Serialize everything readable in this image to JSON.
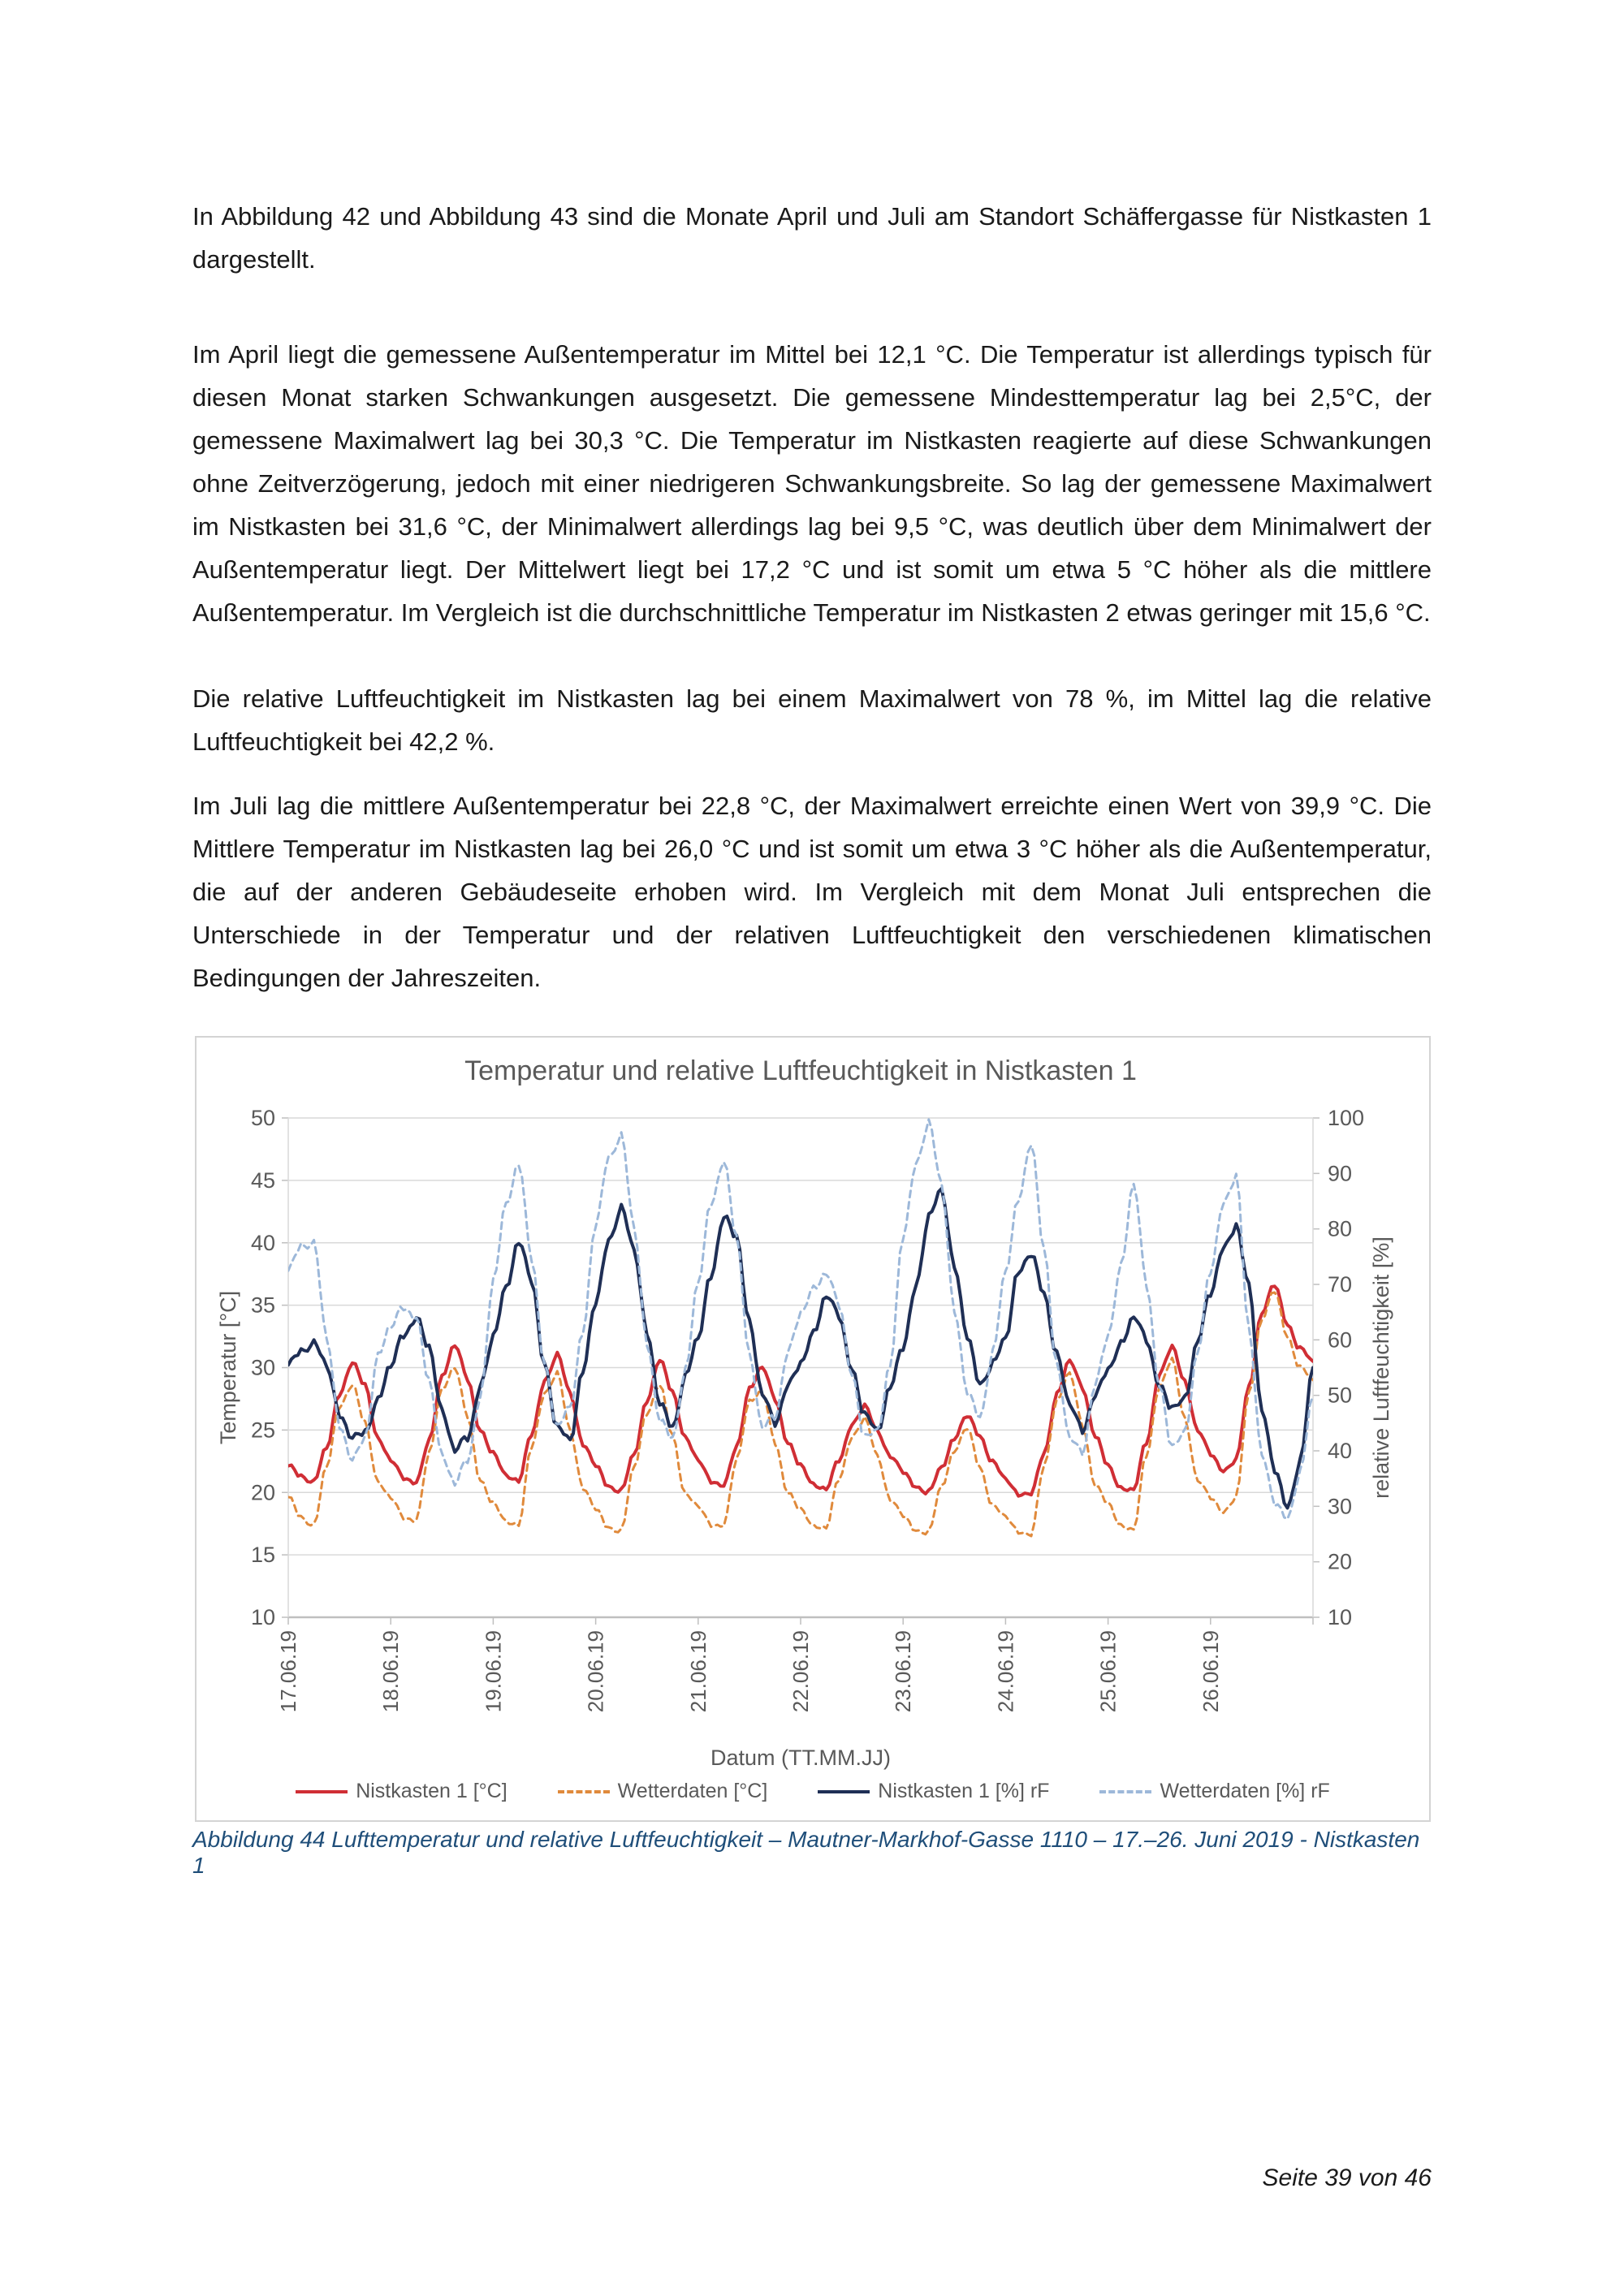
{
  "document": {
    "paragraphs": [
      "In Abbildung 42 und Abbildung 43 sind die Monate April und Juli am Standort Schäffergasse für Nistkasten 1 dargestellt.",
      "Im April liegt die gemessene Außentemperatur im Mittel bei 12,1 °C. Die Temperatur ist allerdings typisch für diesen Monat starken Schwankungen ausgesetzt. Die gemessene Mindesttemperatur lag bei 2,5°C, der gemessene Maximalwert lag bei 30,3 °C. Die Temperatur im Nistkasten reagierte auf diese Schwankungen ohne Zeitverzögerung, jedoch mit einer niedrigeren Schwankungsbreite. So lag der gemessene Maximalwert im Nistkasten bei 31,6 °C, der Minimalwert allerdings lag bei 9,5 °C, was deutlich über dem Minimalwert der Außentemperatur liegt. Der Mittelwert liegt bei 17,2 °C und ist somit um etwa 5 °C höher als die mittlere Außentemperatur. Im Vergleich ist die durchschnittliche Temperatur im Nistkasten 2 etwas geringer mit 15,6 °C.",
      "Die relative Luftfeuchtigkeit im Nistkasten lag bei einem Maximalwert von 78 %, im Mittel lag die relative Luftfeuchtigkeit bei 42,2 %.",
      "Im Juli lag die mittlere Außentemperatur bei 22,8 °C, der Maximalwert erreichte einen Wert von 39,9 °C. Die Mittlere Temperatur im Nistkasten lag bei 26,0 °C und ist somit um etwa 3 °C höher als die Außentemperatur, die auf der anderen Gebäudeseite erhoben wird. Im Vergleich mit dem Monat Juli entsprechen die Unterschiede in der Temperatur und der relativen Luftfeuchtigkeit den verschiedenen klimatischen Bedingungen der Jahreszeiten.",
      "klimatischen Bedingungen der Jahreszeiten."
    ],
    "caption": "Abbildung 44 Lufttemperatur und relative Luftfeuchtigkeit – Mautner-Markhof-Gasse 1110 – 17.–26. Juni 2019 - Nistkasten 1",
    "caption_color": "#1F4E79",
    "footer": "Seite 39 von 46"
  },
  "chart": {
    "title": "Temperatur und relative Luftfeuchtigkeit in Nistkasten 1",
    "x_axis_title": "Datum (TT.MM.JJ)"
  },
  "chart_data": {
    "type": "line",
    "title": "Temperatur und relative Luftfeuchtigkeit in Nistkasten 1",
    "xlabel": "Datum (TT.MM.JJ)",
    "time_step_hours": 3,
    "start": "17.06.19 00:00",
    "x_labels": [
      "17.06.19",
      "18.06.19",
      "19.06.19",
      "20.06.19",
      "21.06.19",
      "22.06.19",
      "23.06.19",
      "24.06.19",
      "25.06.19",
      "26.06.19"
    ],
    "grid": "horizontal",
    "legend_position": "bottom",
    "y_left": {
      "label": "Temperatur [°C]",
      "min": 10,
      "max": 50,
      "tick_step": 5,
      "ticks": [
        50,
        45,
        40,
        35,
        30,
        25,
        20,
        15,
        10
      ]
    },
    "y_right": {
      "label": "relative Luftfeuchtigkeit [%]",
      "min": 10,
      "max": 100,
      "tick_step": 10,
      "ticks": [
        100,
        90,
        80,
        70,
        60,
        50,
        40,
        30,
        20,
        10
      ]
    },
    "series": [
      {
        "name": "Nistkasten 1 [°C]",
        "axis": "left",
        "color": "#D02E35",
        "dash": "solid",
        "values": [
          22,
          21.3,
          21,
          23.5,
          28,
          30.3,
          28.5,
          24.5,
          22.5,
          21.2,
          20.8,
          24,
          29.5,
          31.8,
          29,
          25,
          23,
          21.5,
          21,
          24.5,
          29,
          31,
          28,
          24,
          22,
          20.5,
          20.2,
          23,
          27.5,
          30.5,
          28,
          24.5,
          22.5,
          21,
          20.5,
          23.5,
          28.5,
          30,
          27.5,
          24,
          22,
          20.8,
          20.3,
          22.5,
          25.5,
          26.8,
          25,
          23,
          21.5,
          20.5,
          20,
          22,
          24.5,
          26,
          24.5,
          22.5,
          21,
          20,
          19.8,
          23,
          28,
          30.5,
          28.5,
          24.5,
          22,
          20.5,
          20.2,
          24,
          29.5,
          31.5,
          29,
          25,
          23,
          21.8,
          22.5,
          28.5,
          34.5,
          36.5,
          33.5,
          31.5,
          30.5
        ]
      },
      {
        "name": "Wetterdaten [°C]",
        "axis": "left",
        "color": "#E08A3C",
        "dash": "dashed",
        "values": [
          19.5,
          18,
          17.5,
          22,
          27,
          28.5,
          25.5,
          21,
          19.5,
          18,
          17.8,
          23,
          28.5,
          30,
          26,
          21,
          19,
          17.8,
          17.5,
          23.5,
          28,
          29.5,
          25,
          20.5,
          18.5,
          17.2,
          17,
          22,
          26.5,
          28.5,
          24.5,
          20,
          18.8,
          17.5,
          17.3,
          22.5,
          27.5,
          28,
          24,
          20,
          18.5,
          17.5,
          17.2,
          21,
          24.5,
          25.8,
          23,
          19.5,
          18,
          17,
          16.8,
          20.5,
          23.5,
          25,
          22,
          19,
          18,
          17,
          16.5,
          22,
          27.5,
          29.5,
          25.5,
          20.5,
          19,
          17.5,
          17,
          23,
          28.5,
          30.5,
          26,
          21,
          19.5,
          18.5,
          19.5,
          28,
          34,
          36,
          32.5,
          30,
          29
        ]
      },
      {
        "name": "Nistkasten 1 [%] rF",
        "axis": "right",
        "color": "#1F2F55",
        "dash": "solid",
        "values": [
          55,
          58,
          60,
          55,
          47,
          42,
          43,
          50,
          55,
          61,
          64,
          58,
          48,
          40,
          42,
          52,
          60,
          70,
          78,
          70,
          56,
          44,
          42,
          55,
          66,
          78,
          84,
          76,
          62,
          48,
          44,
          54,
          60,
          72,
          82,
          78,
          64,
          50,
          45,
          52,
          55,
          62,
          68,
          64,
          55,
          46,
          44,
          52,
          58,
          70,
          82,
          87,
          74,
          60,
          52,
          56,
          60,
          73,
          75,
          68,
          58,
          48,
          44,
          50,
          54,
          60,
          64,
          60,
          52,
          47,
          50,
          60,
          68,
          77,
          80,
          70,
          48,
          36,
          30,
          38,
          55
        ]
      },
      {
        "name": "Wetterdaten [%] rF",
        "axis": "right",
        "color": "#9DB8D9",
        "dash": "dashed",
        "values": [
          72,
          77,
          78,
          60,
          45,
          38,
          42,
          58,
          62,
          66,
          64,
          52,
          40,
          34,
          38,
          50,
          70,
          85,
          92,
          74,
          56,
          44,
          48,
          62,
          80,
          93,
          97,
          80,
          60,
          45,
          42,
          55,
          70,
          85,
          92,
          78,
          58,
          44,
          46,
          58,
          64,
          70,
          72,
          66,
          54,
          42,
          44,
          56,
          78,
          92,
          99,
          88,
          66,
          50,
          46,
          58,
          72,
          86,
          95,
          76,
          56,
          42,
          40,
          52,
          60,
          74,
          88,
          70,
          52,
          40,
          44,
          58,
          72,
          85,
          89,
          62,
          40,
          30,
          28,
          36,
          50
        ]
      }
    ]
  }
}
